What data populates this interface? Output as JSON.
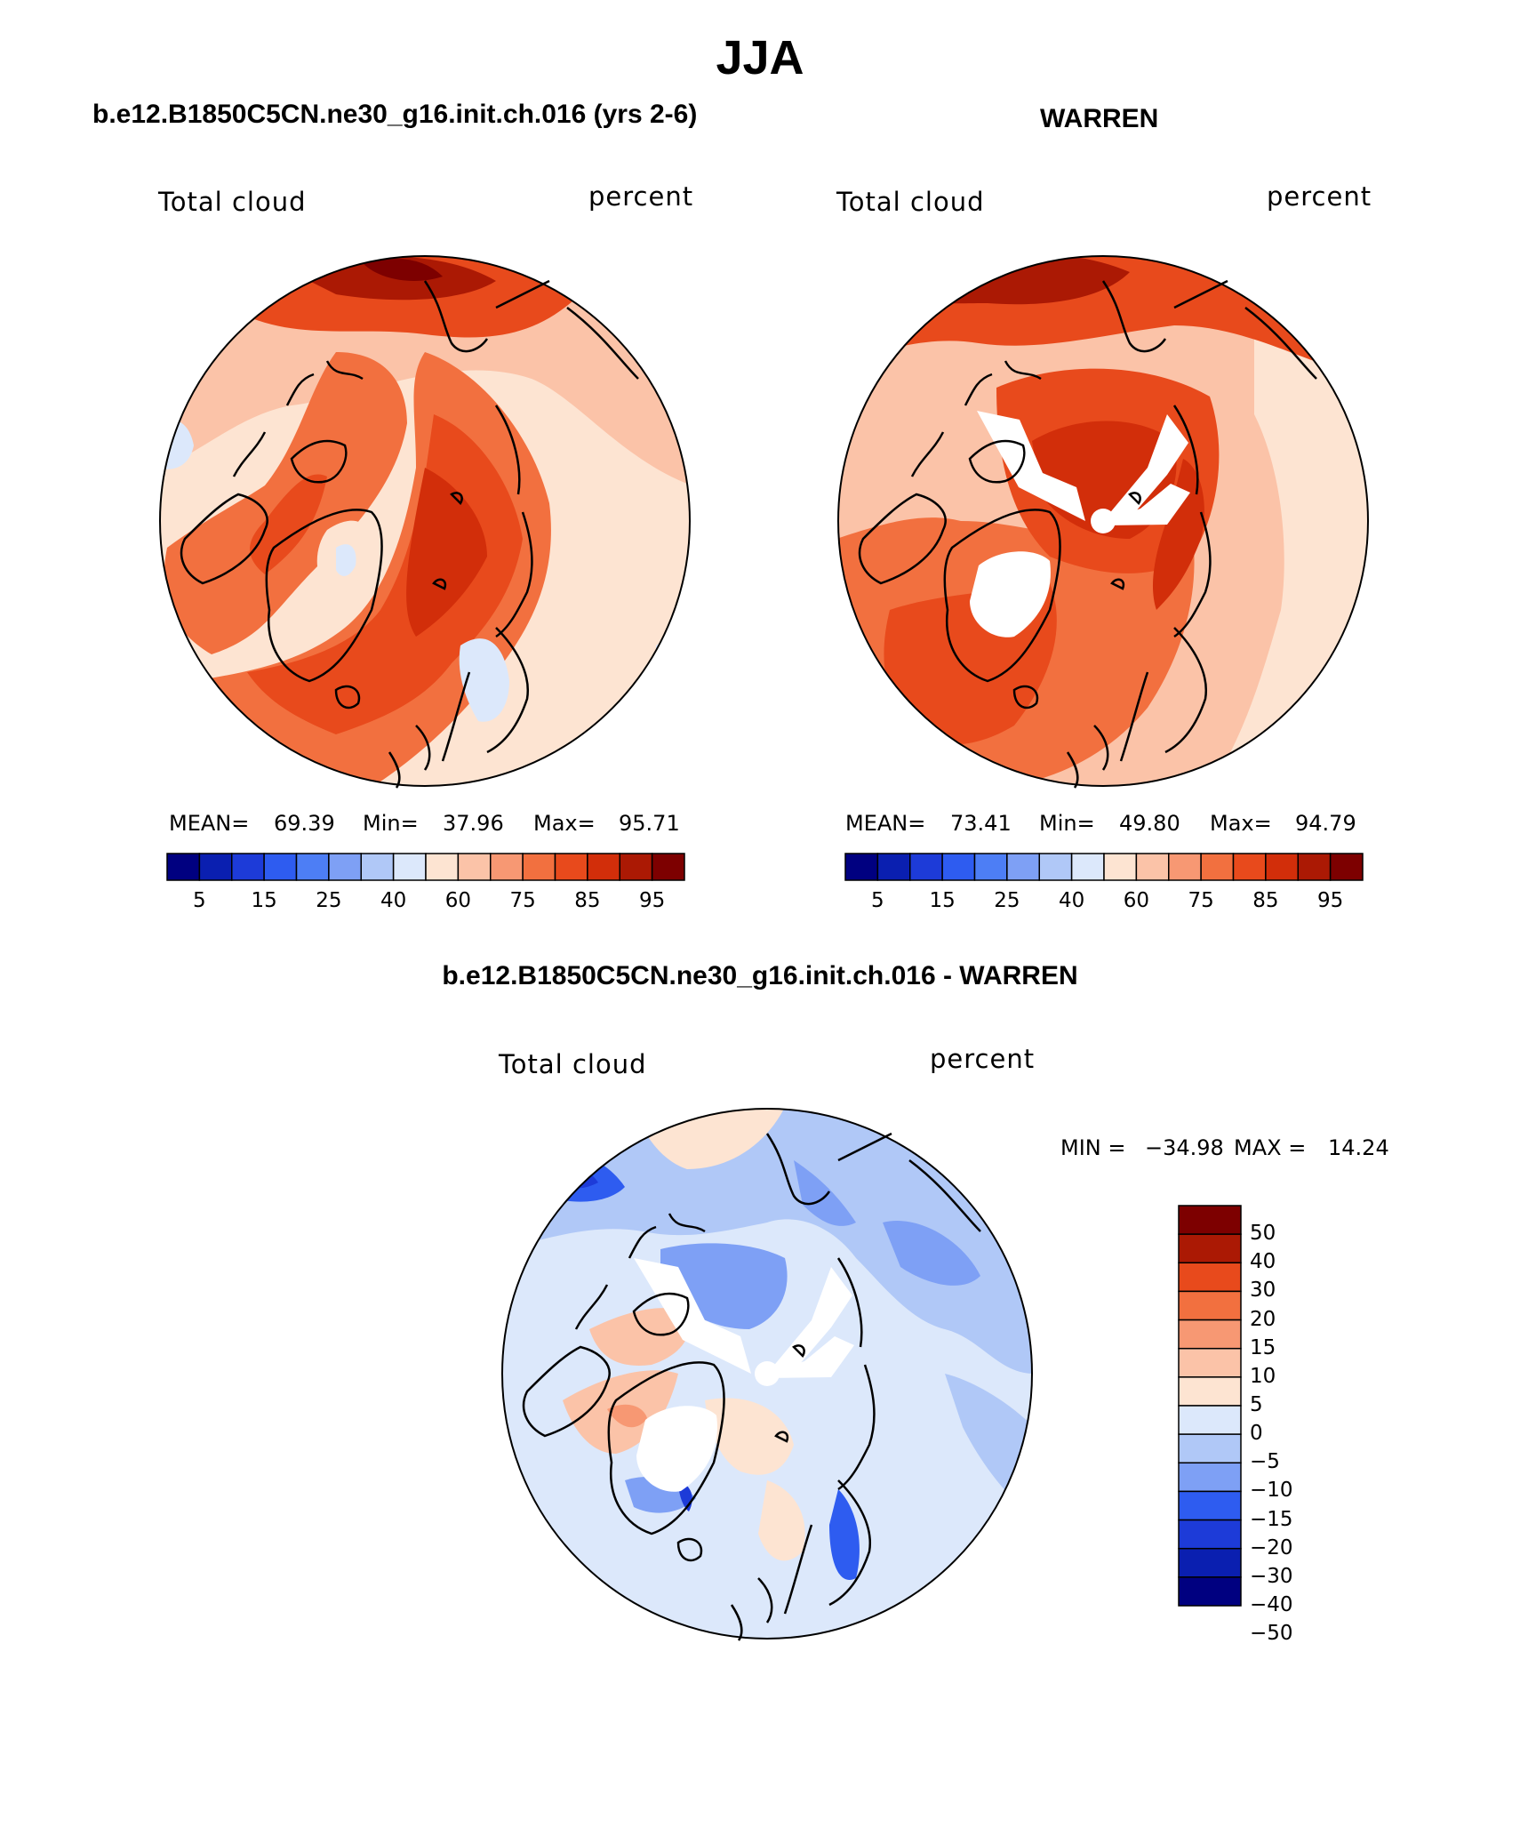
{
  "figure": {
    "title": "JJA",
    "colors": {
      "land_outline": "#000000",
      "missing": "#ffffff",
      "abs_palette": [
        "#000080",
        "#0a1fb0",
        "#1d3bd8",
        "#2e5cf0",
        "#4d7ef5",
        "#7ea0f5",
        "#b0c8f7",
        "#dce8fb",
        "#fde4d2",
        "#fbc3a8",
        "#f79873",
        "#f2703f",
        "#e84a1c",
        "#d22e0a",
        "#ab1904",
        "#7d0000"
      ],
      "diff_palette": [
        "#000080",
        "#0a1fb0",
        "#1d3bd8",
        "#2e5cf0",
        "#7ea0f5",
        "#b0c8f7",
        "#dce8fb",
        "#fde4d2",
        "#fbc3a8",
        "#f79873",
        "#f2703f",
        "#e84a1c",
        "#ab1904",
        "#7d0000"
      ]
    }
  },
  "panels": [
    {
      "title": "b.e12.B1850C5CN.ne30_g16.init.ch.016 (yrs 2-6)",
      "variable": "Total cloud",
      "units": "percent",
      "stats": {
        "mean_label": "MEAN=",
        "mean": "69.39",
        "min_label": "Min=",
        "min": "37.96",
        "max_label": "Max=",
        "max": "95.71"
      },
      "colorbar_ticks": [
        "5",
        "15",
        "25",
        "40",
        "60",
        "75",
        "85",
        "95"
      ]
    },
    {
      "title": "WARREN",
      "variable": "Total cloud",
      "units": "percent",
      "stats": {
        "mean_label": "MEAN=",
        "mean": "73.41",
        "min_label": "Min=",
        "min": "49.80",
        "max_label": "Max=",
        "max": "94.79"
      },
      "colorbar_ticks": [
        "5",
        "15",
        "25",
        "40",
        "60",
        "75",
        "85",
        "95"
      ]
    },
    {
      "title": "b.e12.B1850C5CN.ne30_g16.init.ch.016 - WARREN",
      "variable": "Total cloud",
      "units": "percent",
      "stats": {
        "min_label": "MIN =",
        "min": "−34.98",
        "max_label": "MAX =",
        "max": "14.24"
      },
      "colorbar_ticks": [
        "50",
        "40",
        "30",
        "20",
        "15",
        "10",
        "5",
        "0",
        "−5",
        "−10",
        "−15",
        "−20",
        "−30",
        "−40",
        "−50"
      ]
    }
  ],
  "chart_data": [
    {
      "type": "heatmap",
      "projection": "north polar stereographic",
      "title": "b.e12.B1850C5CN.ne30_g16.init.ch.016 (yrs 2-6)",
      "field": "Total cloud",
      "units": "percent",
      "mean": 69.39,
      "min": 37.96,
      "max": 95.71,
      "contour_levels": [
        5,
        10,
        15,
        20,
        25,
        30,
        40,
        50,
        60,
        70,
        75,
        80,
        85,
        90,
        95
      ]
    },
    {
      "type": "heatmap",
      "projection": "north polar stereographic",
      "title": "WARREN",
      "field": "Total cloud",
      "units": "percent",
      "mean": 73.41,
      "min": 49.8,
      "max": 94.79,
      "contour_levels": [
        5,
        10,
        15,
        20,
        25,
        30,
        40,
        50,
        60,
        70,
        75,
        80,
        85,
        90,
        95
      ]
    },
    {
      "type": "heatmap",
      "projection": "north polar stereographic",
      "title": "b.e12.B1850C5CN.ne30_g16.init.ch.016 - WARREN",
      "field": "Total cloud",
      "units": "percent",
      "min": -34.98,
      "max": 14.24,
      "contour_levels": [
        -50,
        -40,
        -30,
        -20,
        -15,
        -10,
        -5,
        0,
        5,
        10,
        15,
        20,
        30,
        40,
        50
      ]
    }
  ]
}
